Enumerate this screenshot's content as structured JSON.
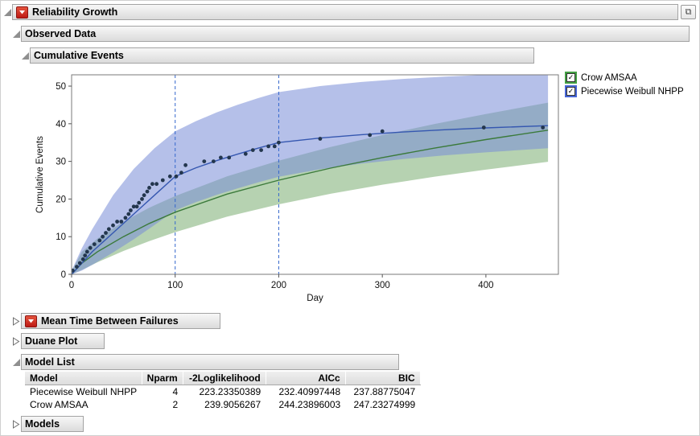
{
  "window": {
    "title": "Reliability Growth"
  },
  "icons": {
    "check": "✓",
    "popout": "⧉"
  },
  "outline": {
    "observed_data": "Observed Data",
    "cumulative_events": "Cumulative Events",
    "mtbf": "Mean Time Between Failures",
    "duane_plot": "Duane Plot",
    "model_list": "Model List",
    "models": "Models"
  },
  "legend": {
    "items": [
      {
        "label": "Crow AMSAA",
        "color": "#44a044",
        "checked": true
      },
      {
        "label": "Piecewise Weibull NHPP",
        "color": "#4766d6",
        "checked": true
      }
    ]
  },
  "model_table": {
    "columns": [
      "Model",
      "Nparm",
      "-2Loglikelihood",
      "AICc",
      "BIC"
    ],
    "rows": [
      [
        "Piecewise Weibull NHPP",
        "4",
        "223.23350389",
        "232.40997448",
        "237.88775047"
      ],
      [
        "Crow AMSAA",
        "2",
        "239.9056267",
        "244.23896003",
        "247.23274999"
      ]
    ]
  },
  "chart_data": {
    "type": "scatter",
    "title": "Cumulative Events",
    "xlabel": "Day",
    "ylabel": "Cumulative Events",
    "xlim": [
      0,
      470
    ],
    "ylim": [
      0,
      53
    ],
    "xticks": [
      0,
      100,
      200,
      300,
      400
    ],
    "yticks": [
      0,
      10,
      20,
      30,
      40,
      50
    ],
    "grid": false,
    "legend_position": "right-top-outside",
    "phase_lines_x": [
      100,
      200
    ],
    "phase_line_color": "#3366cc",
    "point_color": "#23364d",
    "observed_points": [
      [
        1,
        1
      ],
      [
        5,
        2
      ],
      [
        8,
        3
      ],
      [
        11,
        4
      ],
      [
        13,
        5
      ],
      [
        15,
        6
      ],
      [
        18,
        7
      ],
      [
        22,
        8
      ],
      [
        27,
        9
      ],
      [
        30,
        10
      ],
      [
        33,
        11
      ],
      [
        36,
        12
      ],
      [
        40,
        13
      ],
      [
        44,
        14
      ],
      [
        48,
        14
      ],
      [
        52,
        15
      ],
      [
        55,
        16
      ],
      [
        57,
        17
      ],
      [
        60,
        18
      ],
      [
        63,
        18
      ],
      [
        65,
        19
      ],
      [
        68,
        20
      ],
      [
        70,
        21
      ],
      [
        73,
        22
      ],
      [
        75,
        23
      ],
      [
        78,
        24
      ],
      [
        82,
        24
      ],
      [
        88,
        25
      ],
      [
        95,
        26
      ],
      [
        101,
        26
      ],
      [
        106,
        27
      ],
      [
        110,
        29
      ],
      [
        128,
        30
      ],
      [
        137,
        30
      ],
      [
        144,
        31
      ],
      [
        152,
        31
      ],
      [
        168,
        32
      ],
      [
        175,
        33
      ],
      [
        183,
        33
      ],
      [
        190,
        34
      ],
      [
        196,
        34
      ],
      [
        200,
        35
      ],
      [
        240,
        36
      ],
      [
        288,
        37
      ],
      [
        300,
        38
      ],
      [
        398,
        39
      ],
      [
        455,
        39
      ]
    ],
    "series": [
      {
        "name": "Crow AMSAA",
        "line_color": "#3b7a3b",
        "band_fill": "rgba(110,165,100,0.5)",
        "line": [
          [
            0,
            0
          ],
          [
            10,
            3
          ],
          [
            25,
            6
          ],
          [
            50,
            10
          ],
          [
            75,
            13.5
          ],
          [
            100,
            16.5
          ],
          [
            150,
            21.3
          ],
          [
            200,
            25
          ],
          [
            250,
            28.2
          ],
          [
            300,
            31
          ],
          [
            350,
            33.5
          ],
          [
            400,
            35.8
          ],
          [
            460,
            38.3
          ]
        ],
        "upper": [
          [
            0,
            0.8
          ],
          [
            10,
            6
          ],
          [
            25,
            9.5
          ],
          [
            50,
            14
          ],
          [
            75,
            17.7
          ],
          [
            100,
            20.8
          ],
          [
            150,
            26
          ],
          [
            200,
            30.2
          ],
          [
            250,
            33.8
          ],
          [
            300,
            37
          ],
          [
            350,
            39.9
          ],
          [
            400,
            42.6
          ],
          [
            460,
            45.6
          ]
        ],
        "lower": [
          [
            0,
            0
          ],
          [
            10,
            1.2
          ],
          [
            25,
            3.2
          ],
          [
            50,
            6.2
          ],
          [
            75,
            8.8
          ],
          [
            100,
            11.2
          ],
          [
            150,
            15.3
          ],
          [
            200,
            18.6
          ],
          [
            250,
            21.4
          ],
          [
            300,
            23.8
          ],
          [
            350,
            25.9
          ],
          [
            400,
            27.8
          ],
          [
            460,
            29.9
          ]
        ]
      },
      {
        "name": "Piecewise Weibull NHPP",
        "line_color": "#3557b0",
        "band_fill": "rgba(120,140,215,0.55)",
        "line": [
          [
            0,
            0
          ],
          [
            10,
            3
          ],
          [
            20,
            6
          ],
          [
            40,
            11
          ],
          [
            60,
            16
          ],
          [
            80,
            21
          ],
          [
            100,
            26
          ],
          [
            120,
            28.3
          ],
          [
            140,
            30.2
          ],
          [
            160,
            31.9
          ],
          [
            180,
            33.5
          ],
          [
            200,
            35
          ],
          [
            240,
            36.2
          ],
          [
            280,
            37.1
          ],
          [
            320,
            37.8
          ],
          [
            360,
            38.4
          ],
          [
            400,
            38.9
          ],
          [
            460,
            39.5
          ]
        ],
        "upper": [
          [
            0,
            1
          ],
          [
            10,
            7
          ],
          [
            20,
            12
          ],
          [
            40,
            21
          ],
          [
            60,
            28
          ],
          [
            80,
            33.5
          ],
          [
            100,
            38
          ],
          [
            120,
            40.7
          ],
          [
            140,
            43
          ],
          [
            160,
            45
          ],
          [
            180,
            46.8
          ],
          [
            200,
            48.4
          ],
          [
            240,
            50
          ],
          [
            280,
            51.1
          ],
          [
            320,
            51.9
          ],
          [
            360,
            52.5
          ],
          [
            400,
            53
          ],
          [
            460,
            53.7
          ]
        ],
        "lower": [
          [
            0,
            0
          ],
          [
            10,
            1
          ],
          [
            20,
            2.5
          ],
          [
            40,
            5.8
          ],
          [
            60,
            9.3
          ],
          [
            80,
            13.1
          ],
          [
            100,
            17
          ],
          [
            120,
            19.2
          ],
          [
            140,
            21.1
          ],
          [
            160,
            22.8
          ],
          [
            180,
            24.4
          ],
          [
            200,
            25.9
          ],
          [
            240,
            27.9
          ],
          [
            280,
            29.4
          ],
          [
            320,
            30.6
          ],
          [
            360,
            31.6
          ],
          [
            400,
            32.4
          ],
          [
            460,
            33.5
          ]
        ]
      }
    ]
  }
}
